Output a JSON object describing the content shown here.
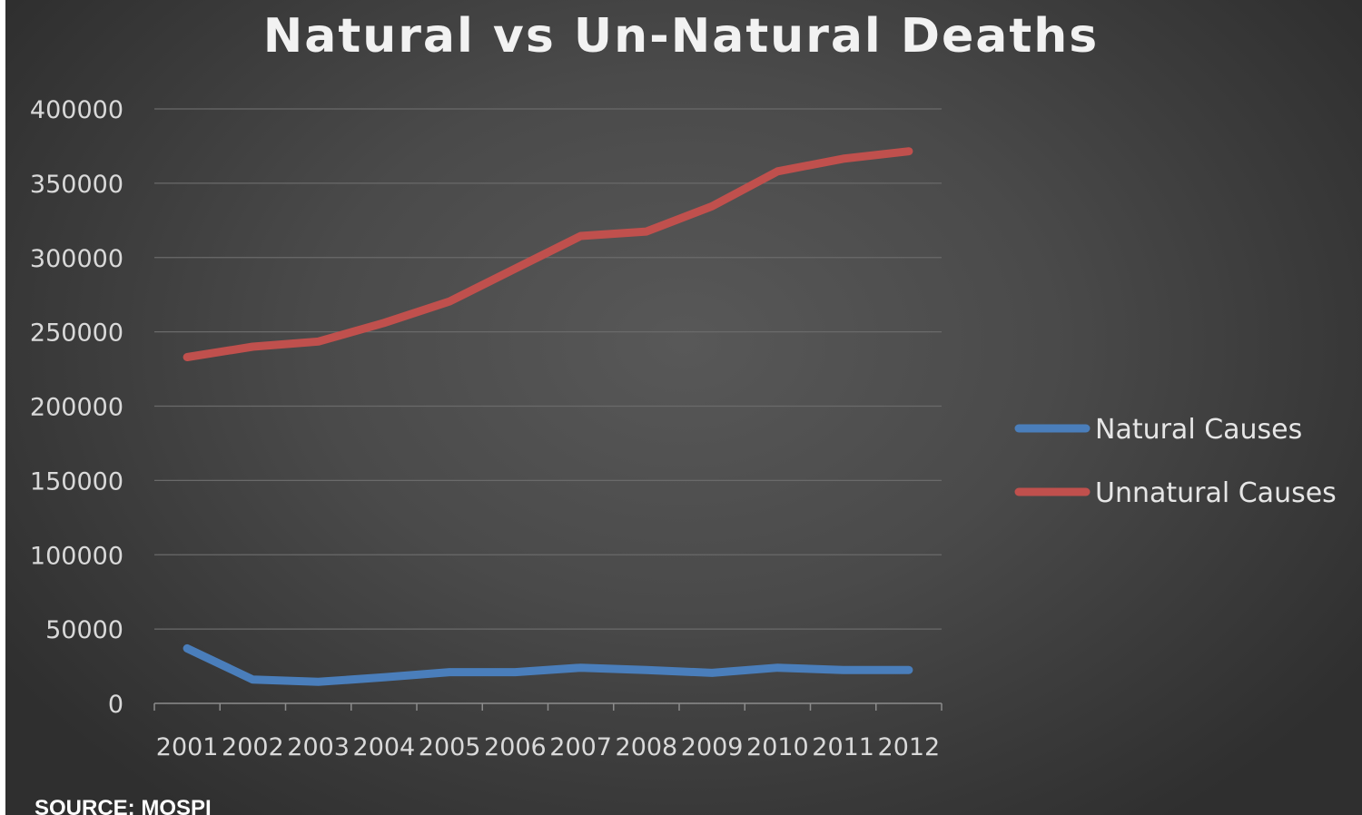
{
  "chart_data": {
    "type": "line",
    "title": "Natural vs Un-Natural Deaths",
    "x": [
      "2001",
      "2002",
      "2003",
      "2004",
      "2005",
      "2006",
      "2007",
      "2008",
      "2009",
      "2010",
      "2011",
      "2012"
    ],
    "series": [
      {
        "name": "Natural Causes",
        "color": "#4a7ebb",
        "values": [
          37000,
          16000,
          14500,
          17500,
          21000,
          21000,
          24000,
          22500,
          20500,
          24000,
          22500,
          22500
        ]
      },
      {
        "name": "Unnatural Causes",
        "color": "#c0504d",
        "values": [
          233000,
          240000,
          243500,
          256000,
          270500,
          292500,
          314500,
          317500,
          334500,
          358000,
          366500,
          371500
        ]
      }
    ],
    "yticks": [
      "0",
      "50000",
      "100000",
      "150000",
      "200000",
      "250000",
      "300000",
      "350000",
      "400000"
    ],
    "ylim": [
      0,
      400000
    ],
    "grid": true,
    "legend_position": "right"
  },
  "source_note": "SOURCE: MOSPI"
}
